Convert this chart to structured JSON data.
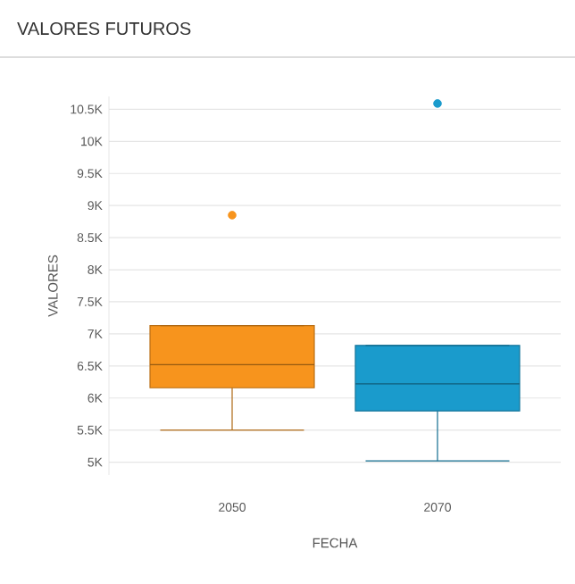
{
  "chart_data": {
    "type": "box",
    "title": "VALORES FUTUROS",
    "xlabel": "FECHA",
    "ylabel": "VALORES",
    "categories": [
      "2050",
      "2070"
    ],
    "colors": [
      "#f7941d",
      "#1a9bcc"
    ],
    "boxes": [
      {
        "low": 5500,
        "q1": 6160,
        "median": 6520,
        "q3": 7130,
        "high": 7130,
        "outliers": [
          8850
        ]
      },
      {
        "low": 5020,
        "q1": 5800,
        "median": 6220,
        "q3": 6820,
        "high": 6820,
        "outliers": [
          10590
        ]
      }
    ],
    "ylim": [
      4800,
      10700
    ],
    "yticks": [
      {
        "value": 5000,
        "label": "5K"
      },
      {
        "value": 5500,
        "label": "5.5K"
      },
      {
        "value": 6000,
        "label": "6K"
      },
      {
        "value": 6500,
        "label": "6.5K"
      },
      {
        "value": 7000,
        "label": "7K"
      },
      {
        "value": 7500,
        "label": "7.5K"
      },
      {
        "value": 8000,
        "label": "8K"
      },
      {
        "value": 8500,
        "label": "8.5K"
      },
      {
        "value": 9000,
        "label": "9K"
      },
      {
        "value": 9500,
        "label": "9.5K"
      },
      {
        "value": 10000,
        "label": "10K"
      },
      {
        "value": 10500,
        "label": "10.5K"
      }
    ],
    "grid": "y"
  }
}
